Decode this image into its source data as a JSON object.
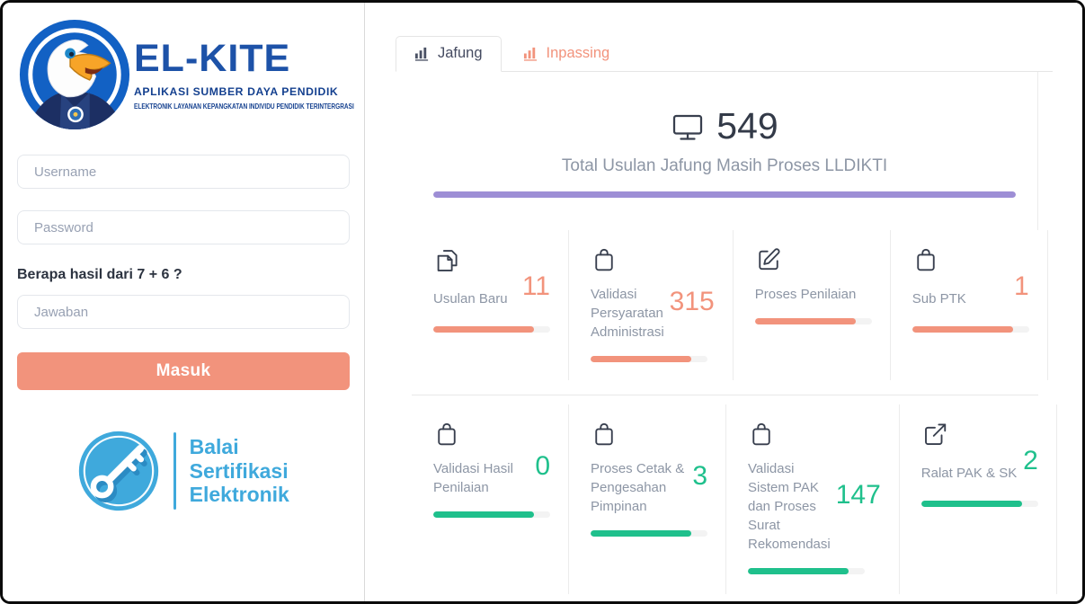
{
  "colors": {
    "salmon": "#f2937c",
    "green": "#1fc08c",
    "purple": "#9d8ed5"
  },
  "sidebar": {
    "brand": {
      "title": "EL-KITE",
      "subtitle": "APLIKASI SUMBER DAYA PENDIDIK",
      "tagline": "ELEKTRONIK LAYANAN KEPANGKATAN INDIVIDU PENDIDIK TERINTERGRASI"
    },
    "form": {
      "username_placeholder": "Username",
      "password_placeholder": "Password",
      "captcha_question": "Berapa hasil dari 7 + 6 ?",
      "answer_placeholder": "Jawaban",
      "submit_label": "Masuk"
    },
    "footer_logo": {
      "line1": "Balai",
      "line2": "Sertifikasi",
      "line3": "Elektronik"
    }
  },
  "main": {
    "tabs": [
      {
        "label": "Jafung",
        "active": true
      },
      {
        "label": "Inpassing",
        "active": false
      }
    ],
    "hero": {
      "total": "549",
      "subtitle": "Total Usulan Jafung Masih Proses LLDIKTI",
      "progress": 100
    },
    "cards": [
      {
        "label": "Usulan Baru",
        "count": "11",
        "icon": "copy-icon",
        "color": "salmon",
        "progress": 86
      },
      {
        "label": "Validasi Persyaratan Administrasi",
        "count": "315",
        "icon": "bag-icon",
        "color": "salmon",
        "progress": 86
      },
      {
        "label": "Proses Penilaian",
        "count": "",
        "icon": "edit-icon",
        "color": "salmon",
        "progress": 86
      },
      {
        "label": "Sub PTK",
        "count": "1",
        "icon": "bag-icon",
        "color": "salmon",
        "progress": 86
      },
      {
        "label": "Validasi Hasil Penilaian",
        "count": "0",
        "icon": "bag-icon",
        "color": "green",
        "progress": 86
      },
      {
        "label": "Proses Cetak & Pengesahan Pimpinan",
        "count": "3",
        "icon": "bag-icon",
        "color": "green",
        "progress": 86
      },
      {
        "label": "Validasi Sistem PAK dan Proses Surat Rekomendasi",
        "count": "147",
        "icon": "bag-icon",
        "color": "green",
        "progress": 86
      },
      {
        "label": "Ralat PAK & SK",
        "count": "2",
        "icon": "external-link-icon",
        "color": "green",
        "progress": 86
      }
    ]
  }
}
